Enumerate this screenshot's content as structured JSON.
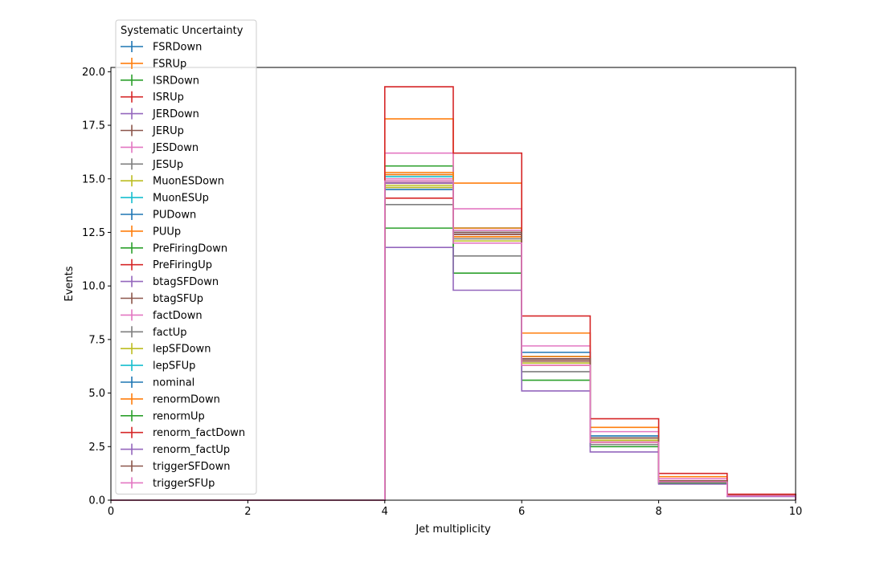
{
  "chart_data": {
    "type": "step",
    "title": "",
    "xlabel": "Jet multiplicity",
    "ylabel": "Events",
    "xlim": [
      0,
      10
    ],
    "ylim": [
      0,
      20.2
    ],
    "xticks": [
      "0",
      "2",
      "4",
      "6",
      "8",
      "10"
    ],
    "yticks": [
      "0.0",
      "2.5",
      "5.0",
      "7.5",
      "10.0",
      "12.5",
      "15.0",
      "17.5",
      "20.0"
    ],
    "bin_edges": [
      0,
      1,
      2,
      3,
      4,
      5,
      6,
      7,
      8,
      9,
      10
    ],
    "legend": {
      "title": "Systematic Uncertainty",
      "placement": "upper-left, extending above the axes"
    },
    "series": [
      {
        "name": "FSRDown",
        "color": "#1f77b4",
        "values": [
          0,
          0,
          0,
          0,
          15.2,
          12.7,
          6.7,
          2.9,
          0.9,
          0.22
        ]
      },
      {
        "name": "FSRUp",
        "color": "#ff7f0e",
        "values": [
          0,
          0,
          0,
          0,
          17.8,
          14.8,
          7.8,
          3.4,
          1.1,
          0.26
        ]
      },
      {
        "name": "ISRDown",
        "color": "#2ca02c",
        "values": [
          0,
          0,
          0,
          0,
          15.6,
          12.7,
          6.7,
          2.9,
          0.9,
          0.22
        ]
      },
      {
        "name": "ISRUp",
        "color": "#d62728",
        "values": [
          0,
          0,
          0,
          0,
          14.1,
          12.3,
          6.5,
          2.8,
          0.9,
          0.2
        ]
      },
      {
        "name": "JERDown",
        "color": "#9467bd",
        "values": [
          0,
          0,
          0,
          0,
          14.9,
          12.5,
          6.6,
          2.9,
          0.9,
          0.21
        ]
      },
      {
        "name": "JERUp",
        "color": "#8c564b",
        "values": [
          0,
          0,
          0,
          0,
          14.8,
          12.4,
          6.5,
          2.8,
          0.9,
          0.21
        ]
      },
      {
        "name": "JESDown",
        "color": "#e377c2",
        "values": [
          0,
          0,
          0,
          0,
          16.2,
          13.6,
          7.2,
          3.2,
          1.0,
          0.24
        ]
      },
      {
        "name": "JESUp",
        "color": "#7f7f7f",
        "values": [
          0,
          0,
          0,
          0,
          13.8,
          11.4,
          6.0,
          2.6,
          0.8,
          0.19
        ]
      },
      {
        "name": "MuonESDown",
        "color": "#bcbd22",
        "values": [
          0,
          0,
          0,
          0,
          14.7,
          12.3,
          6.5,
          2.8,
          0.9,
          0.21
        ]
      },
      {
        "name": "MuonESUp",
        "color": "#17becf",
        "values": [
          0,
          0,
          0,
          0,
          14.9,
          12.5,
          6.6,
          2.9,
          0.9,
          0.21
        ]
      },
      {
        "name": "PUDown",
        "color": "#1f77b4",
        "values": [
          0,
          0,
          0,
          0,
          14.5,
          12.5,
          6.9,
          3.0,
          0.9,
          0.22
        ]
      },
      {
        "name": "PUUp",
        "color": "#ff7f0e",
        "values": [
          0,
          0,
          0,
          0,
          15.3,
          12.3,
          6.3,
          2.7,
          0.8,
          0.2
        ]
      },
      {
        "name": "PreFiringDown",
        "color": "#2ca02c",
        "values": [
          0,
          0,
          0,
          0,
          15.0,
          12.6,
          6.6,
          2.9,
          0.9,
          0.21
        ]
      },
      {
        "name": "PreFiringUp",
        "color": "#d62728",
        "values": [
          0,
          0,
          0,
          0,
          14.8,
          12.4,
          6.5,
          2.8,
          0.9,
          0.21
        ]
      },
      {
        "name": "btagSFDown",
        "color": "#9467bd",
        "values": [
          0,
          0,
          0,
          0,
          14.8,
          12.5,
          6.6,
          2.9,
          0.9,
          0.21
        ]
      },
      {
        "name": "btagSFUp",
        "color": "#8c564b",
        "values": [
          0,
          0,
          0,
          0,
          14.9,
          12.4,
          6.5,
          2.8,
          0.9,
          0.21
        ]
      },
      {
        "name": "factDown",
        "color": "#e377c2",
        "values": [
          0,
          0,
          0,
          0,
          15.0,
          12.6,
          6.6,
          2.9,
          0.9,
          0.21
        ]
      },
      {
        "name": "factUp",
        "color": "#7f7f7f",
        "values": [
          0,
          0,
          0,
          0,
          14.6,
          12.2,
          6.4,
          2.8,
          0.9,
          0.2
        ]
      },
      {
        "name": "lepSFDown",
        "color": "#bcbd22",
        "values": [
          0,
          0,
          0,
          0,
          14.6,
          12.1,
          6.4,
          2.8,
          0.9,
          0.2
        ]
      },
      {
        "name": "lepSFUp",
        "color": "#17becf",
        "values": [
          0,
          0,
          0,
          0,
          15.1,
          12.7,
          6.7,
          2.9,
          0.9,
          0.22
        ]
      },
      {
        "name": "nominal",
        "color": "#1f77b4",
        "values": [
          0,
          0,
          0,
          0,
          14.9,
          12.5,
          6.6,
          2.9,
          0.9,
          0.21
        ]
      },
      {
        "name": "renormDown",
        "color": "#ff7f0e",
        "values": [
          0,
          0,
          0,
          0,
          15.2,
          12.7,
          6.7,
          2.9,
          0.9,
          0.22
        ]
      },
      {
        "name": "renormUp",
        "color": "#2ca02c",
        "values": [
          0,
          0,
          0,
          0,
          12.7,
          10.6,
          5.6,
          2.5,
          0.8,
          0.18
        ]
      },
      {
        "name": "renorm_factDown",
        "color": "#d62728",
        "values": [
          0,
          0,
          0,
          0,
          19.3,
          16.2,
          8.6,
          3.8,
          1.25,
          0.28
        ]
      },
      {
        "name": "renorm_factUp",
        "color": "#9467bd",
        "values": [
          0,
          0,
          0,
          0,
          11.8,
          9.8,
          5.1,
          2.25,
          0.75,
          0.17
        ]
      },
      {
        "name": "triggerSFDown",
        "color": "#8c564b",
        "values": [
          0,
          0,
          0,
          0,
          14.9,
          12.5,
          6.6,
          2.9,
          0.9,
          0.21
        ]
      },
      {
        "name": "triggerSFUp",
        "color": "#e377c2",
        "values": [
          0,
          0,
          0,
          0,
          14.9,
          12.0,
          6.3,
          2.7,
          0.85,
          0.2
        ]
      }
    ]
  }
}
